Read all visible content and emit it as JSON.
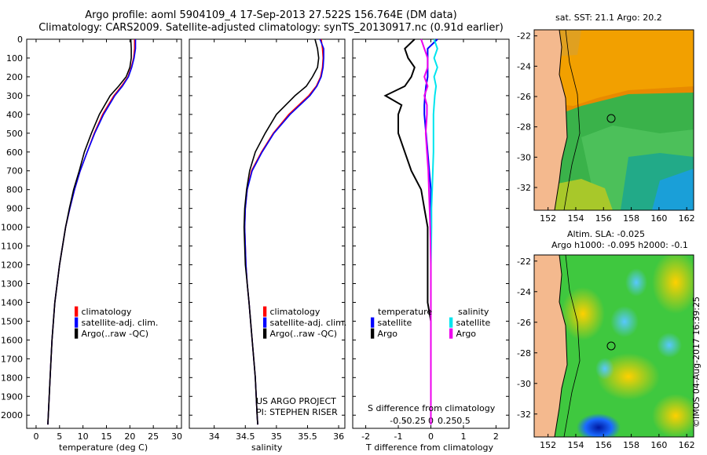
{
  "header": {
    "line1": "Argo profile: aoml 5904109_4 17-Sep-2013 27.522S 156.764E (DM data)",
    "line2": "Climatology: CARS2009. Satellite-adjusted climatology: synTS_20130917.nc (0.91d earlier)"
  },
  "colors": {
    "climatology": "#ff0000",
    "satellite": "#0000ff",
    "argo": "#000000",
    "sal_satellite": "#00e5ee",
    "sal_argo": "#ee00ee"
  },
  "temperature_panel": {
    "xlabel": "temperature (deg C)",
    "legend": [
      "climatology",
      "satellite-adj. clim.",
      "Argo(..raw -QC)"
    ]
  },
  "salinity_panel": {
    "xlabel": "salinity",
    "legend": [
      "climatology",
      "satellite-adj. clim.",
      "Argo(..raw -QC)"
    ],
    "credit1": "US ARGO PROJECT",
    "credit2": "PI: STEPHEN RISER"
  },
  "difference_panel": {
    "legend_temp_title": "temperature",
    "legend_sal_title": "salinity",
    "legend_satellite": "satellite",
    "legend_argo": "Argo",
    "top_axis_label": "S difference from climatology",
    "xlabel": "T difference from climatology"
  },
  "map_sst": {
    "title": "sat. SST: 21.1  Argo: 20.2"
  },
  "map_sla": {
    "title1": "Altim. SLA: -0.025",
    "title2": "Argo h1000: -0.095 h2000: -0.1"
  },
  "watermark": "©IMOS 04-Aug-2017 16:39:25",
  "chart_data": [
    {
      "type": "line",
      "title": "temperature",
      "xlabel": "temperature (deg C)",
      "ylabel": "depth",
      "xlim": [
        -2,
        31
      ],
      "ylim": [
        2070,
        0
      ],
      "xticks": [
        0,
        5,
        10,
        15,
        20,
        25,
        30
      ],
      "yticks": [
        0,
        100,
        200,
        300,
        400,
        500,
        600,
        700,
        800,
        900,
        1000,
        1100,
        1200,
        1300,
        1400,
        1500,
        1600,
        1700,
        1800,
        1900,
        2000
      ],
      "depth": [
        0,
        50,
        100,
        150,
        200,
        250,
        300,
        400,
        500,
        600,
        700,
        800,
        900,
        1000,
        1200,
        1400,
        1600,
        1800,
        2000,
        2050
      ],
      "series": [
        {
          "name": "climatology",
          "values": [
            21.0,
            21.0,
            20.8,
            20.3,
            19.6,
            18.2,
            16.6,
            14.2,
            12.4,
            10.9,
            9.4,
            8.2,
            7.2,
            6.3,
            5.0,
            4.0,
            3.4,
            3.0,
            2.6,
            2.5
          ]
        },
        {
          "name": "satellite-adj. clim.",
          "values": [
            21.2,
            21.2,
            20.9,
            20.4,
            19.7,
            18.4,
            16.8,
            14.4,
            12.5,
            10.9,
            9.4,
            8.2,
            7.2,
            6.3,
            5.0,
            4.0,
            3.4,
            3.0,
            2.6,
            2.5
          ]
        },
        {
          "name": "Argo",
          "values": [
            20.2,
            20.3,
            20.3,
            20.0,
            19.2,
            17.6,
            15.8,
            13.5,
            11.8,
            10.3,
            9.2,
            8.0,
            7.1,
            6.3,
            5.0,
            4.0,
            3.4,
            3.0,
            2.6,
            2.5
          ]
        }
      ]
    },
    {
      "type": "line",
      "title": "salinity",
      "xlabel": "salinity",
      "xlim": [
        33.6,
        36.1
      ],
      "ylim": [
        2070,
        0
      ],
      "xticks": [
        34,
        34.5,
        35,
        35.5,
        36
      ],
      "depth": [
        0,
        50,
        100,
        150,
        200,
        250,
        300,
        400,
        500,
        600,
        700,
        800,
        900,
        1000,
        1100,
        1200,
        1300,
        1400,
        1600,
        1800,
        2000,
        2050
      ],
      "series": [
        {
          "name": "climatology",
          "values": [
            35.72,
            35.74,
            35.75,
            35.74,
            35.71,
            35.64,
            35.52,
            35.2,
            34.95,
            34.76,
            34.6,
            34.53,
            34.5,
            34.49,
            34.5,
            34.51,
            34.53,
            34.56,
            34.61,
            34.66,
            34.69,
            34.7
          ]
        },
        {
          "name": "satellite-adj. clim.",
          "values": [
            35.7,
            35.76,
            35.76,
            35.75,
            35.72,
            35.65,
            35.54,
            35.22,
            34.96,
            34.77,
            34.61,
            34.53,
            34.5,
            34.49,
            34.5,
            34.51,
            34.53,
            34.56,
            34.61,
            34.66,
            34.69,
            34.7
          ]
        },
        {
          "name": "Argo",
          "values": [
            35.62,
            35.66,
            35.68,
            35.66,
            35.58,
            35.48,
            35.3,
            35.0,
            34.82,
            34.66,
            34.57,
            34.52,
            34.49,
            34.48,
            34.49,
            34.5,
            34.53,
            34.56,
            34.61,
            34.66,
            34.69,
            34.7
          ]
        }
      ]
    },
    {
      "type": "line",
      "title": "difference from climatology",
      "xlabel": "T difference from climatology",
      "top_xlabel": "S difference from climatology",
      "xlim": [
        -2.4,
        2.4
      ],
      "ylim": [
        2070,
        0
      ],
      "xticks": [
        -2,
        -1,
        0,
        1,
        2
      ],
      "top_xticks": [
        -0.5,
        -0.25,
        0,
        0.25,
        0.5
      ],
      "top_xtick_labels": [
        "-0.5",
        "-0.25",
        "0",
        "0.25",
        "0.5"
      ],
      "depth": [
        0,
        50,
        100,
        150,
        200,
        250,
        300,
        350,
        400,
        500,
        600,
        700,
        800,
        900,
        1000,
        1200,
        1400,
        1500,
        1600,
        1800,
        2000,
        2050
      ],
      "series": [
        {
          "name": "temperature satellite",
          "values": [
            0.2,
            -0.1,
            -0.1,
            -0.1,
            -0.1,
            -0.15,
            -0.18,
            -0.2,
            -0.2,
            -0.15,
            -0.1,
            -0.05,
            0.0,
            0.0,
            0.0,
            0.0,
            0.0,
            0.0,
            0.0,
            0.0,
            0.0,
            0.0
          ]
        },
        {
          "name": "temperature Argo",
          "values": [
            -0.5,
            -0.8,
            -0.7,
            -0.5,
            -0.6,
            -0.8,
            -1.4,
            -0.9,
            -1.0,
            -1.0,
            -0.8,
            -0.6,
            -0.3,
            -0.2,
            -0.1,
            -0.1,
            -0.1,
            0.0,
            0.0,
            0.0,
            0.0,
            0.0
          ]
        },
        {
          "name": "salinity satellite",
          "values": [
            0.05,
            0.1,
            0.05,
            0.1,
            0.05,
            0.08,
            0.06,
            0.05,
            0.04,
            0.04,
            0.04,
            0.03,
            0.02,
            0.01,
            0.01,
            0.0,
            0.0,
            0.0,
            0.0,
            0.0,
            0.0,
            0.0
          ]
        },
        {
          "name": "salinity Argo",
          "values": [
            -0.15,
            -0.1,
            -0.05,
            -0.05,
            -0.1,
            -0.05,
            -0.1,
            -0.06,
            -0.06,
            -0.08,
            -0.06,
            -0.04,
            -0.03,
            -0.02,
            -0.01,
            0.0,
            0.0,
            0.0,
            0.0,
            0.0,
            0.0,
            0.0
          ]
        }
      ]
    },
    {
      "type": "heatmap",
      "title": "sat. SST: 21.1  Argo: 20.2",
      "xticks": [
        152,
        154,
        156,
        158,
        160,
        162
      ],
      "yticks": [
        -22,
        -24,
        -26,
        -28,
        -30,
        -32
      ],
      "xlim": [
        151,
        162.5
      ],
      "ylim": [
        -33.5,
        -21.6
      ],
      "profile_location": [
        156.764,
        -27.522
      ]
    },
    {
      "type": "heatmap",
      "title": "Altim. SLA: -0.025",
      "xticks": [
        152,
        154,
        156,
        158,
        160,
        162
      ],
      "yticks": [
        -22,
        -24,
        -26,
        -28,
        -30,
        -32
      ],
      "xlim": [
        151,
        162.5
      ],
      "ylim": [
        -33.5,
        -21.6
      ],
      "profile_location": [
        156.764,
        -27.522
      ]
    }
  ]
}
